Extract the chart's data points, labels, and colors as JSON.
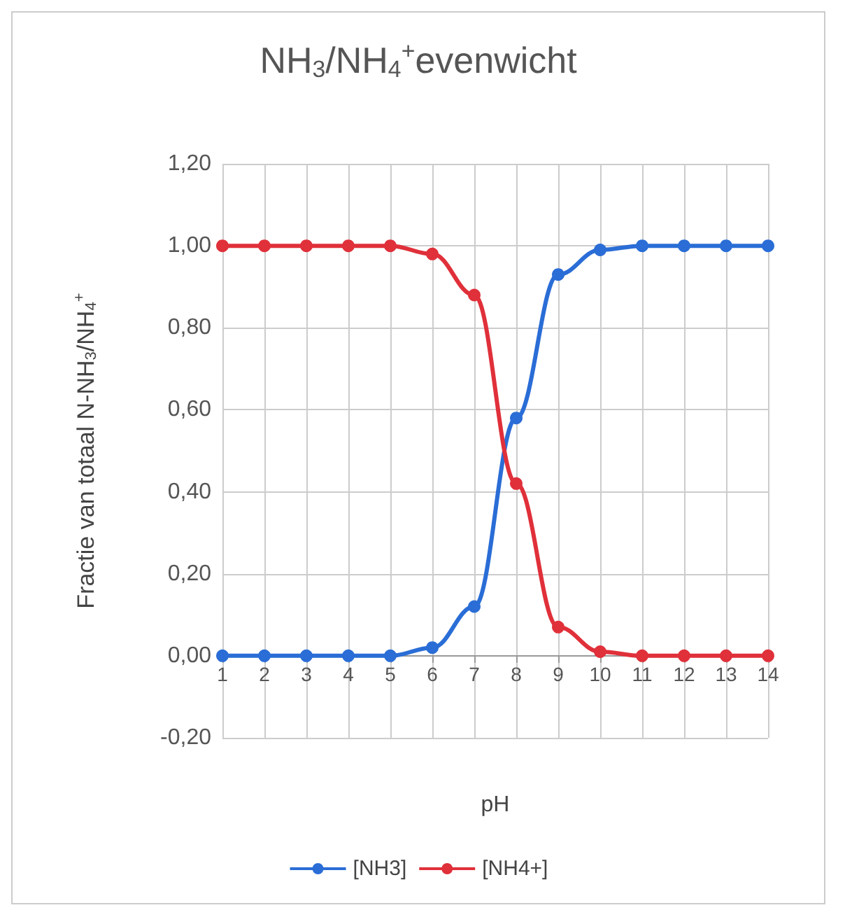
{
  "chart_data": {
    "type": "line",
    "title": "NH$_{3}$/NH$_{4}$$^{+}$evenwicht",
    "xlabel": "pH",
    "ylabel": "Fractie van totaal N-NH$_{3}$/NH$_{4}$$^{+}$",
    "x": [
      1,
      2,
      3,
      4,
      5,
      6,
      7,
      8,
      9,
      10,
      11,
      12,
      13,
      14
    ],
    "xlim": [
      1,
      14
    ],
    "xticks": [
      1,
      2,
      3,
      4,
      5,
      6,
      7,
      8,
      9,
      10,
      11,
      12,
      13,
      14
    ],
    "series": [
      {
        "name": "[NH3]",
        "color": "#2a6dd6",
        "values": [
          0,
          0,
          0,
          0,
          0,
          0.02,
          0.12,
          0.58,
          0.93,
          0.99,
          1,
          1,
          1,
          1
        ]
      },
      {
        "name": "[NH4+]",
        "color": "#e0303a",
        "values": [
          1,
          1,
          1,
          1,
          1,
          0.98,
          0.88,
          0.42,
          0.07,
          0.01,
          0,
          0,
          0,
          0
        ]
      }
    ],
    "ylim": [
      -0.2,
      1.2
    ],
    "yticks": [
      {
        "value": -0.2,
        "label": "-0,20"
      },
      {
        "value": 0,
        "label": "0,00"
      },
      {
        "value": 0.2,
        "label": "0,20"
      },
      {
        "value": 0.4,
        "label": "0,40"
      },
      {
        "value": 0.6,
        "label": "0,60"
      },
      {
        "value": 0.8,
        "label": "0,80"
      },
      {
        "value": 1,
        "label": "1,00"
      },
      {
        "value": 1.2,
        "label": "1,20"
      }
    ],
    "grid": true,
    "legend": "bottom",
    "marker": "circle",
    "line_style": "solid"
  }
}
